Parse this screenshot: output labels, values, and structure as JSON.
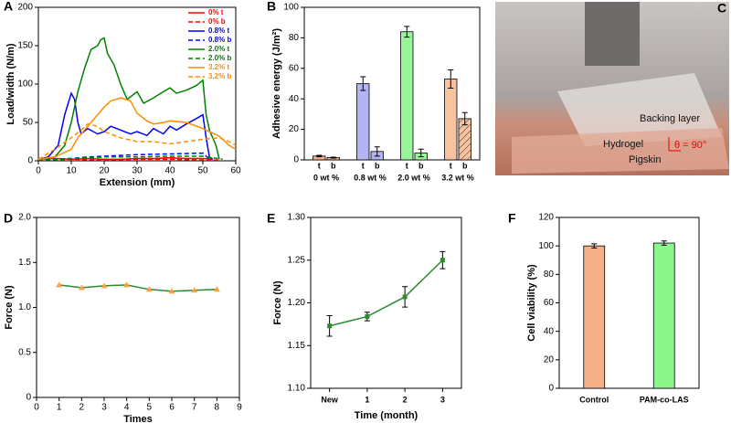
{
  "chart_data": [
    {
      "type": "line",
      "panel": "A",
      "x_label": "Extension (mm)",
      "y_label": "Load/width (N/m)",
      "xlim": [
        0,
        60
      ],
      "xticks": [
        0,
        10,
        20,
        30,
        40,
        50,
        60
      ],
      "ylim": [
        0,
        200
      ],
      "yticks": [
        0,
        50,
        100,
        150,
        200
      ],
      "legend": "top-right",
      "series": [
        {
          "name": "0% t",
          "color": "#ff0000",
          "style": "solid",
          "x": [
            0,
            5,
            10,
            15,
            20,
            25,
            30,
            35,
            40,
            45,
            50,
            53
          ],
          "values": [
            2,
            3,
            2,
            3,
            2,
            2,
            3,
            3,
            4,
            3,
            3,
            2
          ]
        },
        {
          "name": "0% b",
          "color": "#ff0000",
          "style": "dashed",
          "x": [
            0,
            10,
            20,
            30,
            40,
            50,
            55
          ],
          "values": [
            1,
            2,
            1,
            2,
            2,
            1,
            1
          ]
        },
        {
          "name": "0.8% t",
          "color": "#0000ff",
          "style": "solid",
          "x": [
            0,
            3,
            6,
            8,
            10,
            11,
            12,
            13,
            15,
            18,
            20,
            22,
            25,
            28,
            30,
            33,
            35,
            38,
            40,
            42,
            45,
            48,
            50,
            51,
            52,
            53
          ],
          "values": [
            2,
            5,
            20,
            60,
            88,
            80,
            50,
            35,
            42,
            35,
            38,
            45,
            40,
            35,
            38,
            33,
            42,
            35,
            45,
            40,
            48,
            55,
            60,
            30,
            5,
            2
          ]
        },
        {
          "name": "0.8% b",
          "color": "#0000ff",
          "style": "dashed",
          "x": [
            0,
            5,
            10,
            15,
            20,
            30,
            40,
            50,
            52
          ],
          "values": [
            1,
            2,
            3,
            5,
            6,
            8,
            9,
            10,
            2
          ]
        },
        {
          "name": "2.0% t",
          "color": "#008000",
          "style": "solid",
          "x": [
            0,
            5,
            8,
            10,
            12,
            14,
            16,
            18,
            19,
            20,
            21,
            23,
            25,
            27,
            30,
            32,
            35,
            38,
            40,
            42,
            45,
            48,
            50,
            51,
            52,
            54,
            55
          ],
          "values": [
            2,
            5,
            20,
            50,
            90,
            120,
            145,
            150,
            158,
            160,
            140,
            125,
            100,
            80,
            90,
            75,
            82,
            90,
            95,
            88,
            92,
            98,
            105,
            60,
            40,
            20,
            2
          ]
        },
        {
          "name": "2.0% b",
          "color": "#008000",
          "style": "dashed",
          "x": [
            0,
            10,
            20,
            30,
            40,
            50,
            56
          ],
          "values": [
            1,
            3,
            5,
            5,
            6,
            6,
            2
          ]
        },
        {
          "name": "3.2% t",
          "color": "#ff8c00",
          "style": "solid",
          "x": [
            0,
            5,
            10,
            12,
            15,
            18,
            20,
            22,
            25,
            28,
            30,
            33,
            35,
            38,
            40,
            45,
            50,
            55,
            58,
            60
          ],
          "values": [
            2,
            5,
            15,
            30,
            45,
            60,
            70,
            78,
            82,
            78,
            62,
            52,
            48,
            50,
            52,
            50,
            42,
            32,
            20,
            15
          ]
        },
        {
          "name": "3.2% b",
          "color": "#ff8c00",
          "style": "dashed",
          "x": [
            0,
            5,
            10,
            13,
            15,
            18,
            20,
            25,
            30,
            35,
            40,
            45,
            50,
            55,
            58,
            60
          ],
          "values": [
            2,
            15,
            30,
            40,
            48,
            45,
            38,
            30,
            25,
            25,
            22,
            25,
            28,
            30,
            25,
            20
          ]
        }
      ]
    },
    {
      "type": "bar",
      "panel": "B",
      "y_label": "Adhesive energy (J/m²)",
      "categories": [
        "0 wt %",
        "0.8 wt %",
        "2.0 wt %",
        "3.2 wt %"
      ],
      "colors": [
        "#f5b08a",
        "#b3b5f2",
        "#9af59a",
        "#f6c3a0"
      ],
      "ylim": [
        0,
        100
      ],
      "yticks": [
        0,
        20,
        40,
        60,
        80,
        100
      ],
      "series": [
        {
          "name": "t",
          "values": [
            2.5,
            50,
            84,
            53
          ],
          "errors": [
            0.5,
            4.5,
            3.5,
            6
          ],
          "hatched": [
            false,
            false,
            false,
            false
          ]
        },
        {
          "name": "b",
          "values": [
            1.5,
            5.5,
            4.5,
            27
          ],
          "errors": [
            0.3,
            3,
            2.5,
            4
          ],
          "hatched": [
            false,
            false,
            false,
            true
          ]
        }
      ]
    },
    {
      "type": "line",
      "panel": "D",
      "x_label": "Times",
      "y_label": "Force (N)",
      "xlim": [
        0,
        9
      ],
      "xticks": [
        0,
        1,
        2,
        3,
        4,
        5,
        6,
        7,
        8,
        9
      ],
      "ylim": [
        0,
        2
      ],
      "yticks": [
        0,
        0.5,
        {
          "value": 1,
          "label": "1.0"
        },
        1.5,
        {
          "value": 2,
          "label": "2.0"
        }
      ],
      "marker": "triangle",
      "marker_color": "#ffa040",
      "x": [
        1,
        2,
        3,
        4,
        5,
        6,
        7,
        8
      ],
      "series": [
        {
          "color": "#2e8b2e",
          "values": [
            1.25,
            1.22,
            1.24,
            1.25,
            1.2,
            1.18,
            1.19,
            1.2
          ]
        }
      ]
    },
    {
      "type": "line",
      "panel": "E",
      "x_label": "Time (month)",
      "y_label": "Force (N)",
      "categories": [
        "New",
        "1",
        "2",
        "3"
      ],
      "ylim": [
        1.1,
        1.3
      ],
      "yticks": [
        {
          "value": 1.1,
          "label": "1.10"
        },
        1.15,
        {
          "value": 1.2,
          "label": "1.20"
        },
        1.25,
        {
          "value": 1.3,
          "label": "1.30"
        }
      ],
      "marker": "square",
      "marker_color": "#2e8b2e",
      "series": [
        {
          "color": "#2e8b2e",
          "values": [
            1.173,
            1.184,
            1.207,
            1.25
          ],
          "errors": [
            0.012,
            0.005,
            0.012,
            0.01
          ]
        }
      ]
    },
    {
      "type": "bar",
      "panel": "F",
      "y_label": "Cell viability (%)",
      "categories": [
        "Control",
        "PAM-co-LAS"
      ],
      "colors": [
        "#f5b08a",
        "#8cf58c"
      ],
      "ylim": [
        0,
        120
      ],
      "yticks": [
        0,
        20,
        40,
        60,
        80,
        100,
        120
      ],
      "series": [
        {
          "values": [
            100,
            102
          ],
          "errors": [
            1.5,
            1.5
          ]
        }
      ]
    }
  ],
  "photo": {
    "panel": "C",
    "labels": [
      "Backing layer",
      "Hydrogel",
      "θ = 90°",
      "Pigskin"
    ]
  }
}
